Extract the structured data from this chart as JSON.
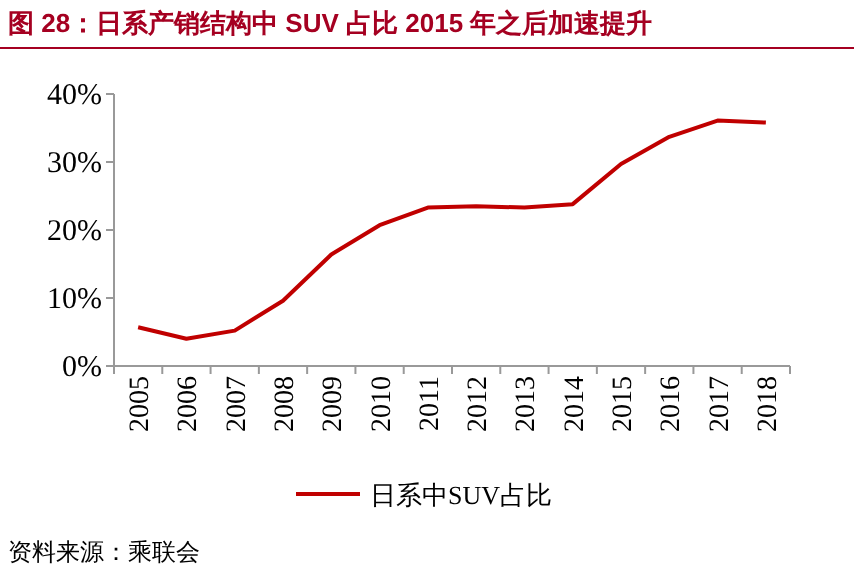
{
  "chart_data": {
    "type": "line",
    "title": "图 28：日系产销结构中 SUV 占比 2015 年之后加速提升",
    "categories": [
      "2005",
      "2006",
      "2007",
      "2008",
      "2009",
      "2010",
      "2011",
      "2012",
      "2013",
      "2014",
      "2015",
      "2016",
      "2017",
      "2018"
    ],
    "series": [
      {
        "name": "日系中SUV占比",
        "color": "#c00000",
        "values": [
          5.7,
          4.0,
          5.2,
          9.6,
          16.4,
          20.7,
          23.3,
          23.5,
          23.3,
          23.8,
          29.7,
          33.7,
          36.1,
          35.8
        ]
      }
    ],
    "ylim": [
      0,
      40
    ],
    "yticks": [
      {
        "value": 0,
        "label": "0%"
      },
      {
        "value": 10,
        "label": "10%"
      },
      {
        "value": 20,
        "label": "20%"
      },
      {
        "value": 30,
        "label": "30%"
      },
      {
        "value": 40,
        "label": "40%"
      }
    ],
    "grid": false,
    "legend": "bottom",
    "marker": "none",
    "line_style": "solid",
    "annotations": [
      "资料来源：乘联会"
    ]
  }
}
